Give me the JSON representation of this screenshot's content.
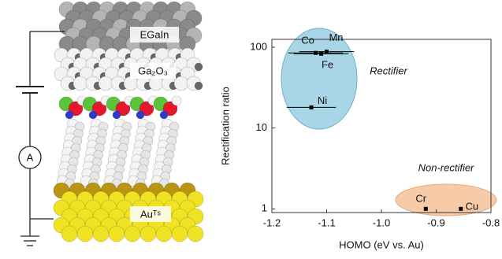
{
  "illustration": {
    "labels": {
      "top": "EGaIn",
      "oxide": "Ga₂O₃",
      "bottom": "Auᵀˢ",
      "meter": "A"
    }
  },
  "chart_data": {
    "type": "scatter",
    "x_label": "HOMO (eV vs. Au)",
    "y_label": "Rectification ratio",
    "xlim": [
      -1.2,
      -0.8
    ],
    "xticks": [
      -1.2,
      -1.1,
      {
        "value": -1,
        "label": "-1.0"
      },
      -0.9,
      -0.8
    ],
    "ylim": [
      0.9,
      125
    ],
    "yticks": [
      1,
      10,
      100
    ],
    "yscale": "log",
    "series": [
      {
        "color": "#000000",
        "x": [
          -1.12,
          -1.1,
          -1.11,
          -1.128,
          -0.919,
          -0.855
        ],
        "values": [
          85,
          88,
          83,
          18,
          1,
          1
        ],
        "xerr": [
          0.05,
          0.05,
          0.05,
          0.045,
          null,
          null
        ],
        "point_labels": [
          "Co",
          "Mn",
          "Fe",
          "Ni",
          "Cr",
          "Cu"
        ]
      }
    ],
    "annotations": [
      "Rectifier",
      "Non-rectifier"
    ]
  }
}
